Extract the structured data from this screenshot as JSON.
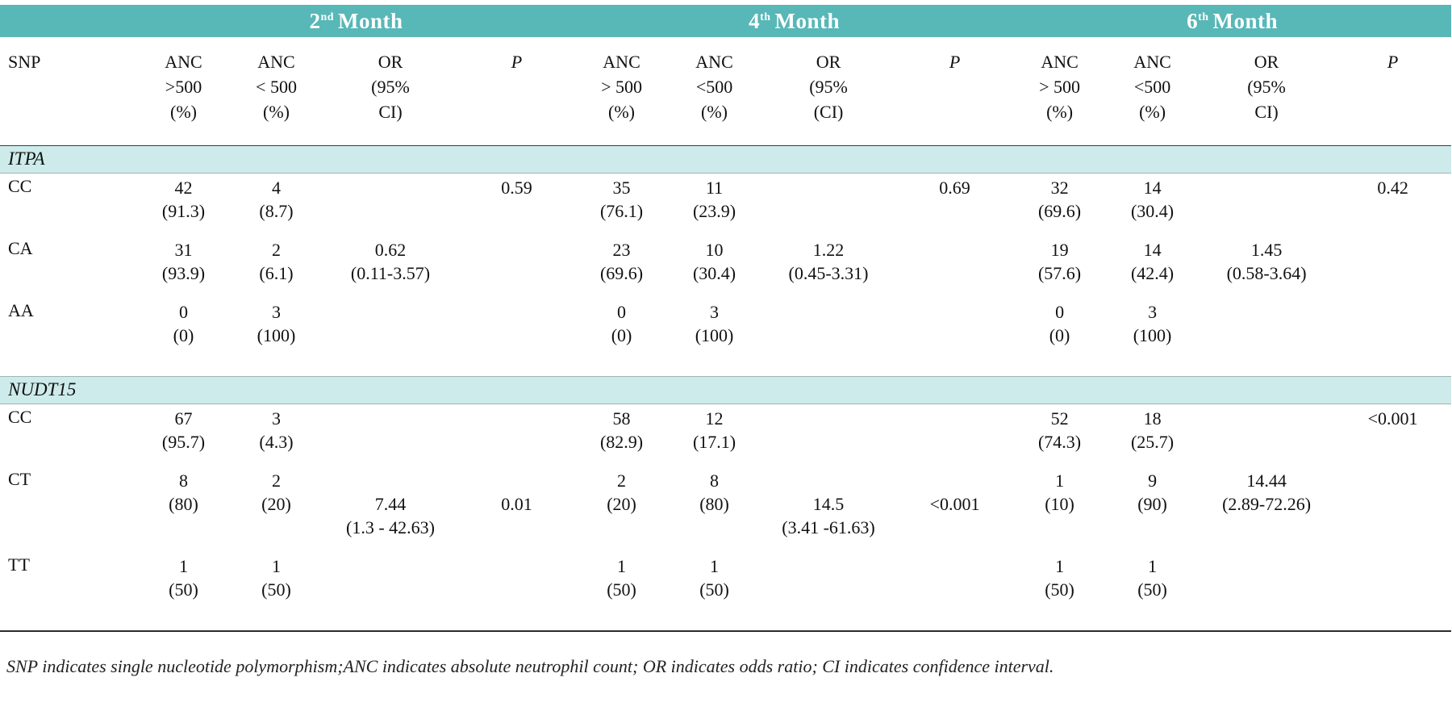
{
  "months": [
    {
      "number": "2",
      "ordinal": "nd",
      "word": "Month"
    },
    {
      "number": "4",
      "ordinal": "th",
      "word": "Month"
    },
    {
      "number": "6",
      "ordinal": "th",
      "word": "Month"
    }
  ],
  "header": {
    "snp": "SNP",
    "columns": [
      [
        "ANC",
        ">500",
        "(%)"
      ],
      [
        "ANC",
        "< 500",
        "(%)"
      ],
      [
        "OR",
        "(95%",
        "CI)"
      ],
      [
        "P"
      ],
      [
        "ANC",
        "> 500",
        "(%)"
      ],
      [
        "ANC",
        "<500",
        "(%)"
      ],
      [
        "OR",
        "(95%",
        "(CI)"
      ],
      [
        "P"
      ],
      [
        "ANC",
        "> 500",
        "(%)"
      ],
      [
        "ANC",
        "<500",
        "(%)"
      ],
      [
        "OR",
        "(95%",
        "CI)"
      ],
      [
        "P"
      ]
    ]
  },
  "sections": [
    {
      "name": "ITPA",
      "rows": [
        {
          "label": "CC",
          "cells": [
            [
              "42",
              "(91.3)"
            ],
            [
              "4",
              "(8.7)"
            ],
            [],
            [
              "0.59"
            ],
            [
              "35",
              "(76.1)"
            ],
            [
              "11",
              "(23.9)"
            ],
            [],
            [
              "0.69"
            ],
            [
              "32",
              "(69.6)"
            ],
            [
              "14",
              "(30.4)"
            ],
            [],
            [
              "0.42"
            ]
          ]
        },
        {
          "label": "CA",
          "cells": [
            [
              "31",
              "(93.9)"
            ],
            [
              "2",
              "(6.1)"
            ],
            [
              "0.62",
              "(0.11-3.57)"
            ],
            [],
            [
              "23",
              "(69.6)"
            ],
            [
              "10",
              "(30.4)"
            ],
            [
              "1.22",
              "(0.45-3.31)"
            ],
            [],
            [
              "19",
              "(57.6)"
            ],
            [
              "14",
              "(42.4)"
            ],
            [
              "1.45",
              "(0.58-3.64)"
            ],
            []
          ]
        },
        {
          "label": "AA",
          "cells": [
            [
              "0",
              "(0)"
            ],
            [
              "3",
              "(100)"
            ],
            [],
            [],
            [
              "0",
              "(0)"
            ],
            [
              "3",
              "(100)"
            ],
            [],
            [],
            [
              "0",
              "(0)"
            ],
            [
              "3",
              "(100)"
            ],
            [],
            []
          ]
        }
      ]
    },
    {
      "name": "NUDT15",
      "rows": [
        {
          "label": "CC",
          "cells": [
            [
              "67",
              "(95.7)"
            ],
            [
              "3",
              "(4.3)"
            ],
            [],
            [],
            [
              "58",
              "(82.9)"
            ],
            [
              "12",
              "(17.1)"
            ],
            [],
            [],
            [
              "52",
              "(74.3)"
            ],
            [
              "18",
              "(25.7)"
            ],
            [],
            [
              "<0.001"
            ]
          ]
        },
        {
          "label": "CT",
          "cells": [
            [
              "8",
              "(80)"
            ],
            [
              "2",
              "(20)"
            ],
            [
              "",
              "7.44",
              "(1.3 - 42.63)"
            ],
            [
              "",
              "0.01"
            ],
            [
              "2",
              "(20)"
            ],
            [
              "8",
              "(80)"
            ],
            [
              "",
              "14.5",
              "(3.41 -61.63)"
            ],
            [
              "",
              "<0.001"
            ],
            [
              "1",
              "(10)"
            ],
            [
              "9",
              "(90)"
            ],
            [
              "14.44",
              "(2.89-72.26)"
            ],
            []
          ]
        },
        {
          "label": "TT",
          "cells": [
            [
              "1",
              "(50)"
            ],
            [
              "1",
              "(50)"
            ],
            [],
            [],
            [
              "1",
              "(50)"
            ],
            [
              "1",
              "(50)"
            ],
            [],
            [],
            [
              "1",
              "(50)"
            ],
            [
              "1",
              "(50)"
            ],
            [],
            []
          ]
        }
      ]
    }
  ],
  "footnote": "SNP indicates single nucleotide polymorphism;ANC indicates absolute neutrophil count; OR indicates odds ratio; CI indicates confidence interval.",
  "colors": {
    "header_teal": "#58b7b7",
    "band_teal": "#cdebea"
  }
}
